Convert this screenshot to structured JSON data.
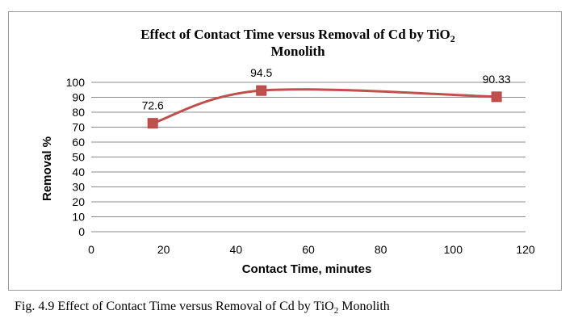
{
  "chart_data": {
    "type": "line",
    "title_line1": "Effect of Contact Time  versus Removal of Cd by TiO",
    "title_sub": "2",
    "title_line2": "Monolith",
    "xlabel": "Contact Time, minutes",
    "ylabel": "Removal %",
    "xlim": [
      0,
      120
    ],
    "ylim": [
      0,
      100
    ],
    "x_ticks": [
      0,
      20,
      40,
      60,
      80,
      100,
      120
    ],
    "y_ticks": [
      0,
      10,
      20,
      30,
      40,
      50,
      60,
      70,
      80,
      90,
      100
    ],
    "grid": "horizontal",
    "series": [
      {
        "x": [
          17,
          47,
          112
        ],
        "y": [
          72.6,
          94.5,
          90.33
        ],
        "labels": [
          "72.6",
          "94.5",
          "90.33"
        ],
        "color": "#c0504d",
        "marker": "square",
        "smooth": true
      }
    ]
  },
  "caption": {
    "prefix": "Fig. 4.9 Effect of Contact Time versus Removal of Cd by TiO",
    "sub": "2",
    "suffix": " Monolith"
  }
}
